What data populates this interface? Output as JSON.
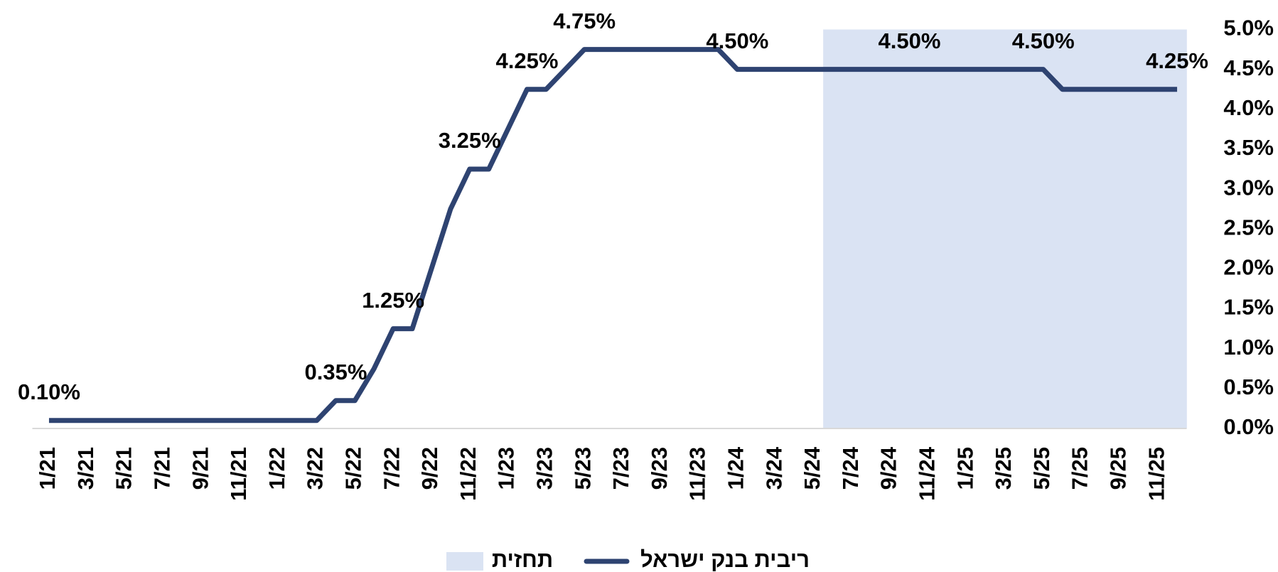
{
  "chart_data": {
    "type": "line",
    "categories": [
      "1/21",
      null,
      "3/21",
      null,
      "5/21",
      null,
      "7/21",
      null,
      "9/21",
      null,
      "11/21",
      null,
      "1/22",
      null,
      "3/22",
      null,
      "5/22",
      null,
      "7/22",
      null,
      "9/22",
      null,
      "11/22",
      null,
      "1/23",
      null,
      "3/23",
      null,
      "5/23",
      null,
      "7/23",
      null,
      "9/23",
      null,
      "11/23",
      null,
      "1/24",
      null,
      "3/24",
      null,
      "5/24",
      null,
      "7/24",
      null,
      "9/24",
      null,
      "11/24",
      null,
      "1/25",
      null,
      "3/25",
      null,
      "5/25",
      null,
      "7/25",
      null,
      "9/25",
      null,
      "11/25",
      null
    ],
    "series": [
      {
        "name": "ריבית בנק ישראל",
        "color": "#2e4371",
        "type": "line",
        "values": [
          0.1,
          0.1,
          0.1,
          0.1,
          0.1,
          0.1,
          0.1,
          0.1,
          0.1,
          0.1,
          0.1,
          0.1,
          0.1,
          0.1,
          0.1,
          0.35,
          0.35,
          0.75,
          1.25,
          1.25,
          2.0,
          2.75,
          3.25,
          3.25,
          3.75,
          4.25,
          4.25,
          4.5,
          4.75,
          4.75,
          4.75,
          4.75,
          4.75,
          4.75,
          4.75,
          4.75,
          4.5,
          4.5,
          4.5,
          4.5,
          4.5,
          4.5,
          4.5,
          4.5,
          4.5,
          4.5,
          4.5,
          4.5,
          4.5,
          4.5,
          4.5,
          4.5,
          4.5,
          4.25,
          4.25,
          4.25,
          4.25,
          4.25,
          4.25,
          4.25
        ],
        "value_labels": [
          "0.10%",
          null,
          null,
          null,
          null,
          null,
          null,
          null,
          null,
          null,
          null,
          null,
          null,
          null,
          null,
          "0.35%",
          null,
          null,
          "1.25%",
          null,
          null,
          null,
          "3.25%",
          null,
          null,
          "4.25%",
          null,
          null,
          "4.75%",
          null,
          null,
          null,
          null,
          null,
          null,
          null,
          "4.50%",
          null,
          null,
          null,
          null,
          null,
          null,
          null,
          null,
          "4.50%",
          null,
          null,
          null,
          null,
          null,
          null,
          "4.50%",
          null,
          null,
          null,
          null,
          null,
          null,
          "4.25%"
        ]
      },
      {
        "name": "תחזית",
        "color": "#dae3f3",
        "type": "bar",
        "values": [
          null,
          null,
          null,
          null,
          null,
          null,
          null,
          null,
          null,
          null,
          null,
          null,
          null,
          null,
          null,
          null,
          null,
          null,
          null,
          null,
          null,
          null,
          null,
          null,
          null,
          null,
          null,
          null,
          null,
          null,
          null,
          null,
          null,
          null,
          null,
          null,
          null,
          null,
          null,
          null,
          null,
          5,
          5,
          5,
          5,
          5,
          5,
          5,
          5,
          5,
          5,
          5,
          5,
          5,
          5,
          5,
          5,
          5,
          5,
          5
        ]
      }
    ],
    "ylim": [
      0,
      5
    ],
    "yticks": [
      {
        "value": 0,
        "label": "0.0%"
      },
      {
        "value": 0.5,
        "label": "0.5%"
      },
      {
        "value": 1,
        "label": "1.0%"
      },
      {
        "value": 1.5,
        "label": "1.5%"
      },
      {
        "value": 2,
        "label": "2.0%"
      },
      {
        "value": 2.5,
        "label": "2.5%"
      },
      {
        "value": 3,
        "label": "3.0%"
      },
      {
        "value": 3.5,
        "label": "3.5%"
      },
      {
        "value": 4,
        "label": "4.0%"
      },
      {
        "value": 4.5,
        "label": "4.5%"
      },
      {
        "value": 5,
        "label": "5.0%"
      }
    ],
    "y_axis_side": "right",
    "grid": false,
    "legend": "bottom"
  }
}
